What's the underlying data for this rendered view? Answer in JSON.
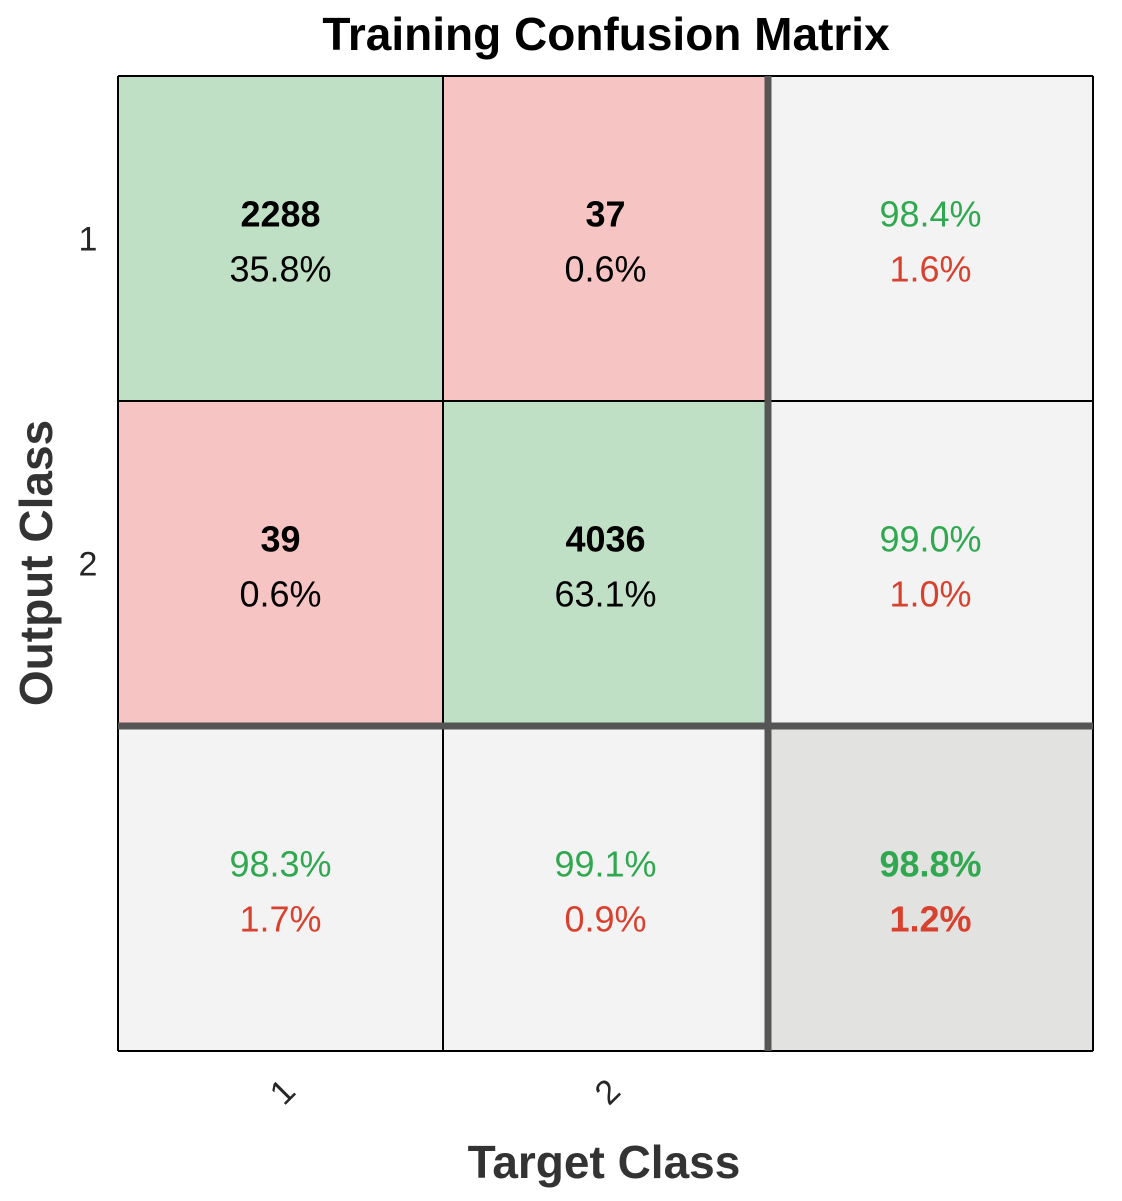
{
  "colors": {
    "correct_cell": "#bfe0c4",
    "incorrect_cell": "#f6c4c2",
    "summary_cell": "#f3f3f3",
    "total_cell": "#e2e2e0",
    "good_text": "#2fa84f",
    "bad_text": "#d9412f",
    "thin_border": "#000000",
    "thick_border": "#555555"
  },
  "chart_data": {
    "type": "heatmap",
    "title": "Training Confusion Matrix",
    "xlabel": "Target Class",
    "ylabel": "Output Class",
    "x_tick_labels": [
      "1",
      "2"
    ],
    "y_tick_labels": [
      "1",
      "2"
    ],
    "grid": true,
    "matrix": [
      [
        {
          "count": "2288",
          "percent": "35.8%",
          "correct": true
        },
        {
          "count": "37",
          "percent": "0.6%",
          "correct": false
        }
      ],
      [
        {
          "count": "39",
          "percent": "0.6%",
          "correct": false
        },
        {
          "count": "4036",
          "percent": "63.1%",
          "correct": true
        }
      ]
    ],
    "row_summary": [
      {
        "good": "98.4%",
        "bad": "1.6%"
      },
      {
        "good": "99.0%",
        "bad": "1.0%"
      }
    ],
    "column_summary": [
      {
        "good": "98.3%",
        "bad": "1.7%"
      },
      {
        "good": "99.1%",
        "bad": "0.9%"
      }
    ],
    "overall": {
      "good": "98.8%",
      "bad": "1.2%"
    }
  }
}
